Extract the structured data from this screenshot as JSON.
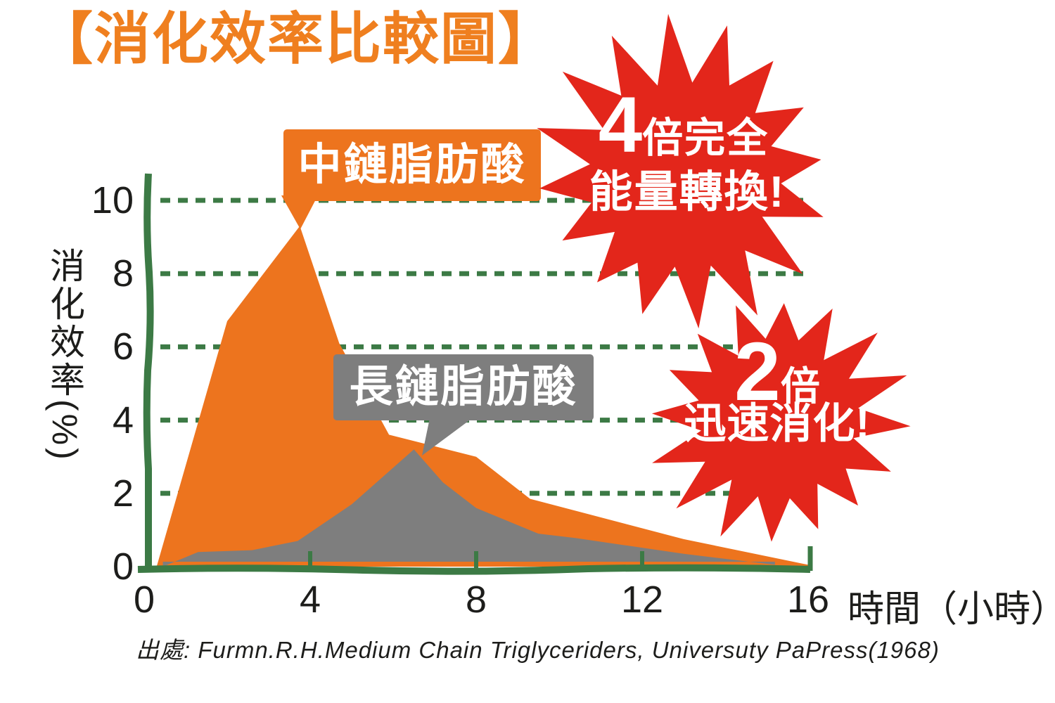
{
  "title": "【消化效率比較圖】",
  "y_axis": {
    "label": "消化效率(%)",
    "ticks": [
      10,
      8,
      6,
      4,
      2,
      0
    ]
  },
  "x_axis": {
    "label": "時間（小時）",
    "ticks": [
      0,
      4,
      8,
      12,
      16
    ]
  },
  "series_labels": {
    "medium_chain": "中鏈脂肪酸",
    "long_chain": "長鏈脂肪酸"
  },
  "badges": [
    {
      "big": "4",
      "unit": "倍完全",
      "line2": "能量轉換!"
    },
    {
      "big": "2",
      "unit": "倍",
      "line2": "迅速消化!"
    }
  ],
  "source": "出處: Furmn.R.H.Medium Chain Triglyceriders, Universuty PaPress(1968)",
  "colors": {
    "title_orange": "#EF7F1F",
    "area_orange": "#ED741E",
    "area_gray": "#7E7E7E",
    "badge_red": "#E3261B",
    "axis_green": "#3C7A45",
    "text_black": "#1D1D1B",
    "label_text": "#FFFFFF"
  },
  "chart_data": {
    "type": "area",
    "title": "【消化效率比較圖】",
    "xlabel": "時間（小時）",
    "ylabel": "消化效率(%)",
    "xlim": [
      0,
      16
    ],
    "ylim": [
      0,
      11
    ],
    "x_ticks": [
      0,
      4,
      8,
      12,
      16
    ],
    "y_ticks": [
      10,
      8,
      6,
      4,
      2,
      0
    ],
    "grid": "horizontal dashed green lines at y=2,4,6,8,10",
    "legend_position": "callout labels on chart",
    "series": [
      {
        "name": "中鏈脂肪酸",
        "color": "#ED741E",
        "points": [
          [
            0.3,
            0
          ],
          [
            2,
            6.7
          ],
          [
            3.75,
            9.3
          ],
          [
            4.7,
            6.1
          ],
          [
            5.9,
            3.6
          ],
          [
            8,
            3.0
          ],
          [
            9.3,
            1.85
          ],
          [
            13,
            0.75
          ],
          [
            16,
            0.05
          ]
        ]
      },
      {
        "name": "長鏈脂肪酸",
        "color": "#7E7E7E",
        "points": [
          [
            0.45,
            0
          ],
          [
            1.3,
            0.4
          ],
          [
            2.6,
            0.45
          ],
          [
            3.7,
            0.7
          ],
          [
            5,
            1.7
          ],
          [
            6.5,
            3.2
          ],
          [
            7.2,
            2.3
          ],
          [
            8,
            1.6
          ],
          [
            9.5,
            0.9
          ],
          [
            10.4,
            0.78
          ],
          [
            13,
            0.35
          ],
          [
            15.2,
            0.05
          ]
        ]
      }
    ],
    "annotations": [
      {
        "text": "中鏈脂肪酸",
        "type": "callout-box",
        "points_to": [
          3.75,
          9.3
        ]
      },
      {
        "text": "長鏈脂肪酸",
        "type": "callout-box",
        "points_to": [
          6.5,
          3.2
        ]
      },
      {
        "text": "4倍完全能量轉換!",
        "type": "starburst"
      },
      {
        "text": "2倍迅速消化!",
        "type": "starburst"
      }
    ]
  }
}
